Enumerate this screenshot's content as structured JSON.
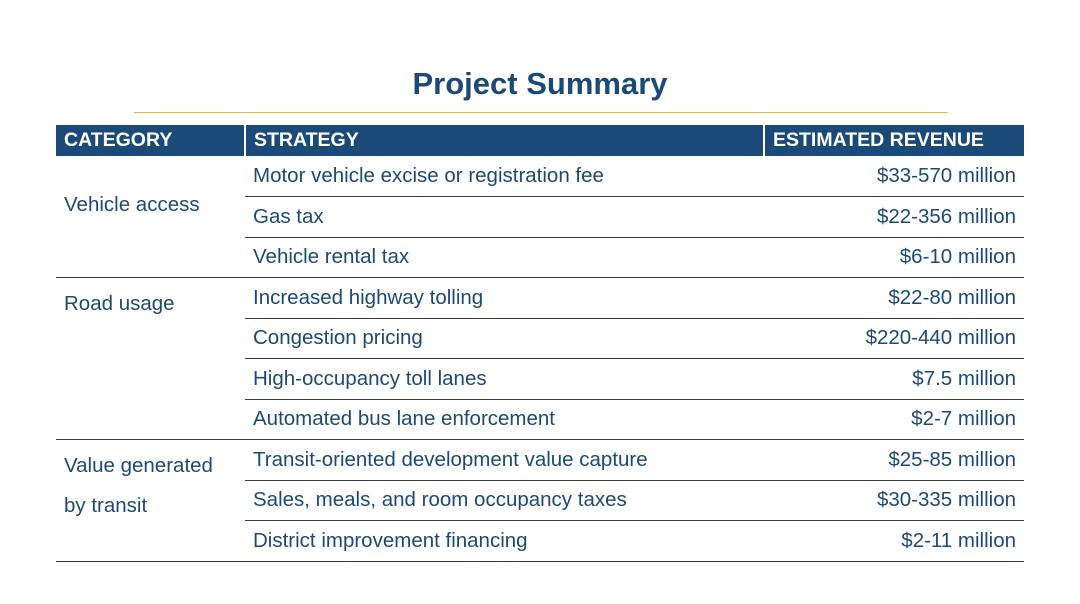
{
  "title": "Project Summary",
  "table": {
    "headers": [
      "CATEGORY",
      "STRATEGY",
      "ESTIMATED REVENUE"
    ],
    "groups": [
      {
        "category": "Vehicle access",
        "rows": [
          {
            "strategy": "Motor vehicle excise or registration fee",
            "revenue": "$33-570 million"
          },
          {
            "strategy": "Gas tax",
            "revenue": "$22-356 million"
          },
          {
            "strategy": "Vehicle rental tax",
            "revenue": "$6-10 million"
          }
        ]
      },
      {
        "category": "Road usage",
        "rows": [
          {
            "strategy": "Increased highway tolling",
            "revenue": "$22-80 million"
          },
          {
            "strategy": "Congestion pricing",
            "revenue": "$220-440 million"
          },
          {
            "strategy": "High-occupancy toll lanes",
            "revenue": "$7.5 million"
          },
          {
            "strategy": "Automated bus lane enforcement",
            "revenue": "$2-7 million"
          }
        ]
      },
      {
        "category_lines": [
          "Value generated",
          "by transit"
        ],
        "rows": [
          {
            "strategy": "Transit-oriented development value capture",
            "revenue": "$25-85 million"
          },
          {
            "strategy": "Sales, meals, and room occupancy taxes",
            "revenue": "$30-335 million"
          },
          {
            "strategy": "District improvement financing",
            "revenue": "$2-11 million"
          }
        ]
      }
    ]
  }
}
